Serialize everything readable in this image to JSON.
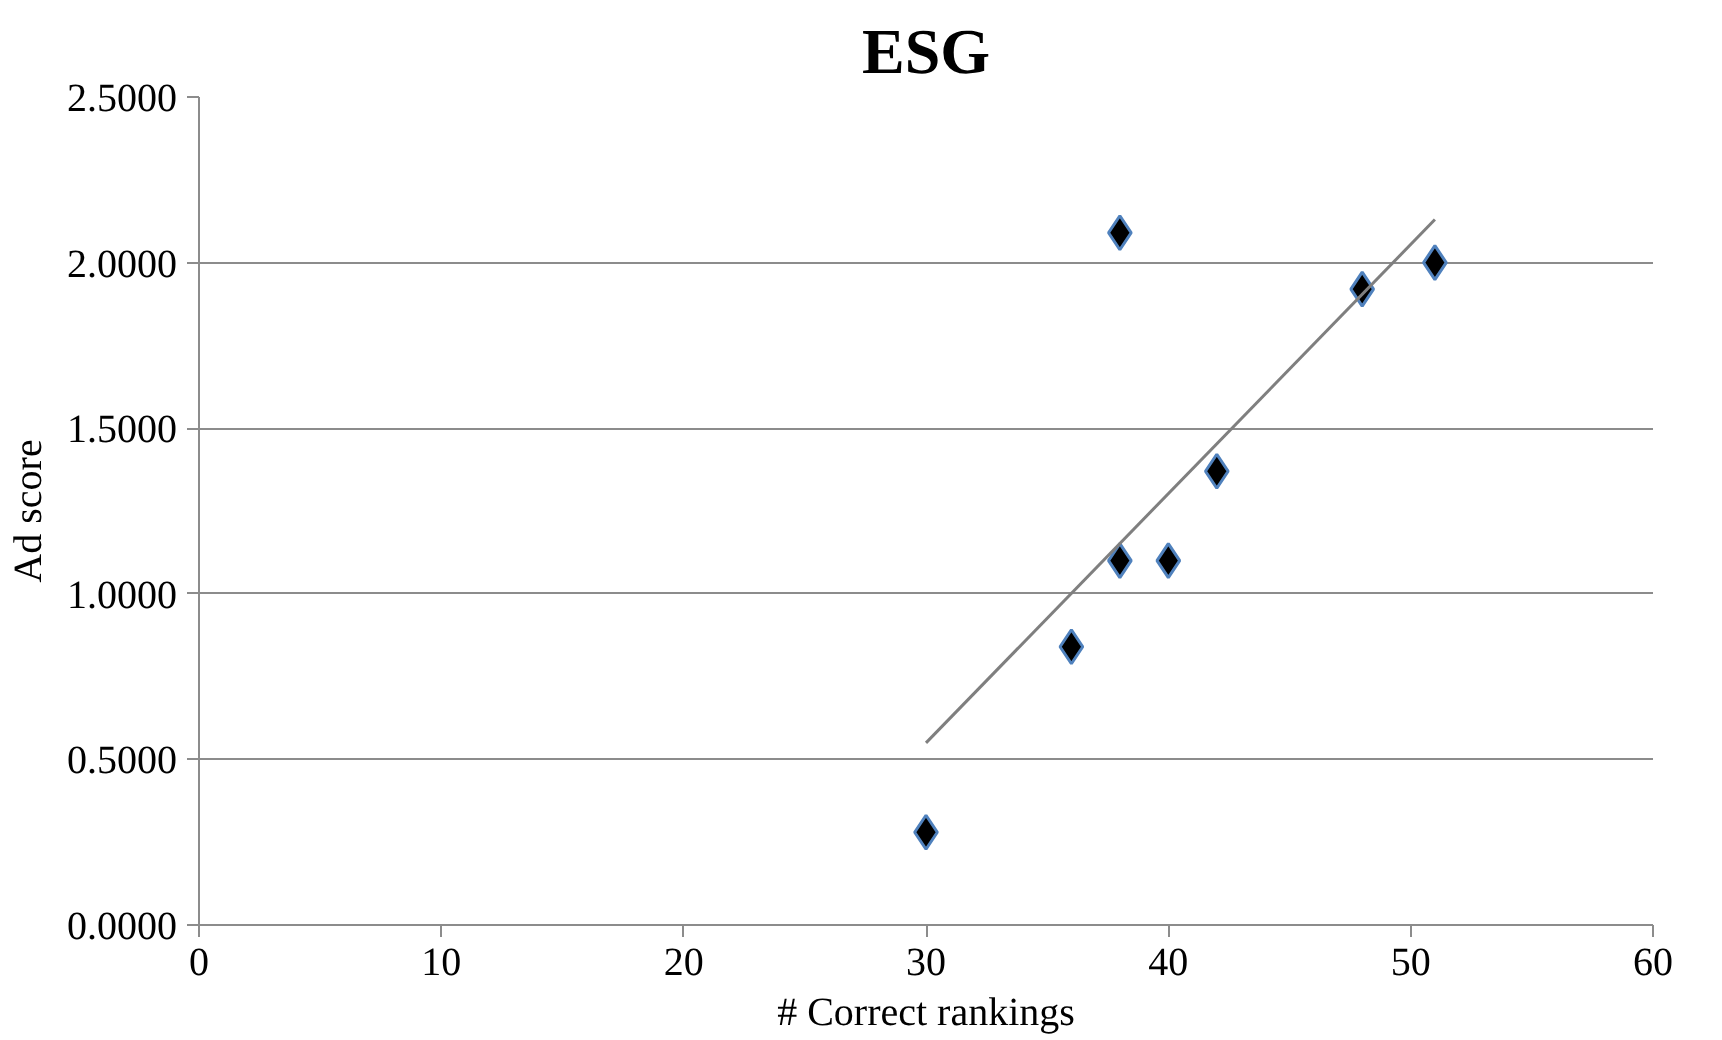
{
  "chart_data": {
    "type": "scatter",
    "title": "ESG",
    "xlabel": "# Correct rankings",
    "ylabel": "Ad score",
    "xlim": [
      0,
      60
    ],
    "xticks": [
      0,
      10,
      20,
      30,
      40,
      50,
      60
    ],
    "ylim": [
      0,
      2.5
    ],
    "yticks": [
      {
        "value": 0,
        "label": "0.0000"
      },
      {
        "value": 0.5,
        "label": "0.5000"
      },
      {
        "value": 1,
        "label": "1.0000"
      },
      {
        "value": 1.5,
        "label": "1.5000"
      },
      {
        "value": 2,
        "label": "2.0000"
      },
      {
        "value": 2.5,
        "label": "2.5000"
      }
    ],
    "grid": "y",
    "marker": "diamond",
    "series": [
      {
        "color": "#000000",
        "x": [
          30,
          36,
          38,
          40,
          42,
          38,
          48,
          51
        ],
        "values": [
          0.28,
          0.84,
          1.1,
          1.1,
          1.37,
          2.09,
          1.92,
          2.0
        ]
      },
      {
        "type": "line",
        "color": "#7f7f7f",
        "x": [
          30,
          51
        ],
        "values": [
          0.55,
          2.13
        ],
        "marker": "none",
        "line_style": "solid"
      }
    ]
  }
}
